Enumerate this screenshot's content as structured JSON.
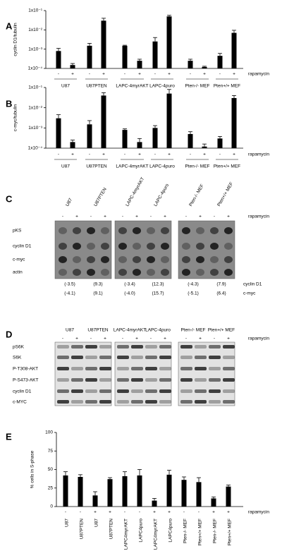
{
  "chart_data": [
    {
      "type": "bar",
      "panel_label": "A",
      "y_label": "cyclin D1/tubulin",
      "log_y": true,
      "color": "#000000",
      "categories": [
        "-",
        "+",
        "-",
        "+",
        "-",
        "+",
        "-",
        "+",
        "-",
        "+",
        "-",
        "+"
      ],
      "groups": [
        "U87",
        "U87PTEN",
        "LAPC-4myrAKT",
        "LAPC-4puro",
        "Pten-/- MEF",
        "Pten+/+ MEF"
      ],
      "treatment_label": "rapamycin",
      "values": [
        0.0008,
        0.00015,
        0.0015,
        0.03,
        0.0015,
        0.00025,
        0.0025,
        0.05,
        0.00025,
        0.00012,
        0.00045,
        0.007
      ],
      "errors": [
        0.0003,
        3e-05,
        0.0005,
        0.01,
        0.0001,
        5e-05,
        0.0015,
        0.007,
        5e-05,
        1e-05,
        0.00015,
        0.0025
      ],
      "ylim": [
        0.0001,
        0.1
      ],
      "yticks": [
        {
          "value": 0.0001,
          "label": "1x10⁻⁴"
        },
        {
          "value": 0.001,
          "label": "1x10⁻³"
        },
        {
          "value": 0.01,
          "label": "1x10⁻²"
        },
        {
          "value": 0.1,
          "label": "1x10⁻¹"
        }
      ]
    },
    {
      "type": "bar",
      "panel_label": "B",
      "y_label": "c-myc/tubulin",
      "log_y": true,
      "color": "#000000",
      "categories": [
        "-",
        "+",
        "-",
        "+",
        "-",
        "+",
        "-",
        "+",
        "-",
        "+",
        "-",
        "+"
      ],
      "groups": [
        "U87",
        "U87PTEN",
        "LAPC-4myrAKT",
        "LAPC-4puro",
        "Pten-/- MEF",
        "Pten+/+ MEF"
      ],
      "treatment_label": "rapamycin",
      "values": [
        0.003,
        0.0002,
        0.0015,
        0.04,
        0.0008,
        0.0002,
        0.001,
        0.05,
        0.0005,
        0.00012,
        0.0003,
        0.03
      ],
      "errors": [
        0.0015,
        5e-05,
        0.0008,
        0.015,
        0.0001,
        0.0001,
        0.0003,
        0.03,
        0.00015,
        4e-05,
        8e-05,
        0.01
      ],
      "ylim": [
        0.0001,
        0.1
      ],
      "yticks": [
        {
          "value": 0.0001,
          "label": "1x10⁻⁴"
        },
        {
          "value": 0.001,
          "label": "1x10⁻³"
        },
        {
          "value": 0.01,
          "label": "1x10⁻²"
        },
        {
          "value": 0.1,
          "label": "1x10⁻¹"
        }
      ]
    },
    {
      "type": "bar",
      "panel_label": "E",
      "y_label": "% cells in S-phase",
      "log_y": false,
      "color": "#000000",
      "categories": [
        "U87",
        "U87PTEN",
        "U87",
        "U87PTEN",
        "LAPC4myrAKT",
        "LAPC4puro",
        "LAPC4myrAKT",
        "LAPC4puro",
        "Pten-/- MEF",
        "Pten+/+ MEF",
        "Pten-/- MEF",
        "Pten+/+ MEF"
      ],
      "signs": [
        "-",
        "-",
        "+",
        "+",
        "-",
        "-",
        "+",
        "+",
        "-",
        "-",
        "+",
        "+"
      ],
      "treatment_label": "rapamycin",
      "values": [
        42,
        40,
        15,
        37,
        41,
        42,
        8,
        43,
        36,
        33,
        11,
        27
      ],
      "errors": [
        5,
        3,
        5,
        2,
        6,
        8,
        3,
        6,
        4,
        6,
        2,
        2
      ],
      "ylim": [
        0,
        100
      ],
      "yticks": [
        0,
        25,
        50,
        75,
        100
      ]
    }
  ],
  "blot_panels": [
    {
      "panel_label": "C",
      "headers": [
        "U87",
        "U87PTEN",
        "LAPC-4myrAKT",
        "LAPC-4puro",
        "Pten-/- MEF",
        "Pten+/+ MEF"
      ],
      "signs": [
        "-",
        "+",
        "-",
        "+",
        "-",
        "+",
        "-",
        "+",
        "-",
        "+",
        "-",
        "+"
      ],
      "treatment_label": "rapamycin",
      "rows": [
        "pKS",
        "cyclin D1",
        "c-myc",
        "actin"
      ],
      "quant": [
        {
          "name": "cyclin D1",
          "values": [
            "(-3.5)",
            "(9.3)",
            "(-3.4)",
            "(12.3)",
            "(-4.3)",
            "(7.9)"
          ]
        },
        {
          "name": "c-myc",
          "values": [
            "(-4.1)",
            "(9.1)",
            "(-4.0)",
            "(15.7)",
            "(-5.1)",
            "(6.4)"
          ]
        }
      ]
    },
    {
      "panel_label": "D",
      "headers": [
        "U87",
        "U87PTEN",
        "LAPC-4myrAKT",
        "LAPC-4puro",
        "Pten-/- MEF",
        "Pten+/+ MEF"
      ],
      "signs": [
        "-",
        "+",
        "-",
        "+",
        "-",
        "+",
        "-",
        "+",
        "-",
        "+",
        "-",
        "+"
      ],
      "treatment_label": "rapamycin",
      "rows": [
        "pS6K",
        "S6K",
        "P-T308-AKT",
        "P-S473-AKT",
        "cyclin D1",
        "c-MYC"
      ]
    }
  ]
}
